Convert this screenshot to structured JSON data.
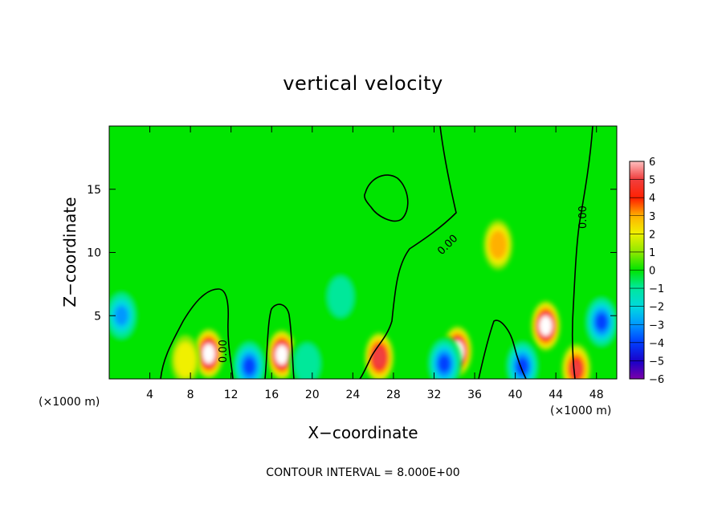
{
  "chart_data": {
    "type": "heatmap",
    "title": "vertical velocity",
    "xlabel": "X−coordinate",
    "ylabel": "Z−coordinate",
    "x_unit": "(×1000 m)",
    "y_unit": "(×1000 m)",
    "xlim": [
      0,
      50
    ],
    "ylim": [
      0,
      20
    ],
    "x_ticks": [
      4,
      8,
      12,
      16,
      20,
      24,
      28,
      32,
      36,
      40,
      44,
      48
    ],
    "y_ticks": [
      5,
      10,
      15
    ],
    "colorbar": {
      "min": -6,
      "max": 6,
      "ticks": [
        6,
        5,
        4,
        3,
        2,
        1,
        0,
        -1,
        -2,
        -3,
        -4,
        -5,
        -6
      ],
      "tick_labels": [
        "6",
        "5",
        "4",
        "3",
        "2",
        "1",
        "0",
        "−1",
        "−2",
        "−3",
        "−4",
        "−5",
        "−6"
      ]
    },
    "contour_labels": [
      "0.00",
      "0.00",
      "0.00"
    ],
    "contour_interval_text": "CONTOUR INTERVAL = 8.000E+00",
    "features": [
      {
        "x": 9.8,
        "z": 2.0,
        "w": 6
      },
      {
        "x": 17.0,
        "z": 1.9,
        "w": 6
      },
      {
        "x": 26.6,
        "z": 1.7,
        "w": 5
      },
      {
        "x": 34.3,
        "z": 2.2,
        "w": 6
      },
      {
        "x": 43.0,
        "z": 4.2,
        "w": 6
      },
      {
        "x": 38.3,
        "z": 10.6,
        "w": 3
      },
      {
        "x": 7.5,
        "z": 1.5,
        "w": 2
      },
      {
        "x": 46.0,
        "z": 0.8,
        "w": 4
      },
      {
        "x": 1.2,
        "z": 5.0,
        "w": -3
      },
      {
        "x": 13.8,
        "z": 1.0,
        "w": -4
      },
      {
        "x": 22.8,
        "z": 6.5,
        "w": -2
      },
      {
        "x": 33.0,
        "z": 1.2,
        "w": -4
      },
      {
        "x": 40.7,
        "z": 1.0,
        "w": -4
      },
      {
        "x": 48.5,
        "z": 4.5,
        "w": -4
      },
      {
        "x": 19.5,
        "z": 1.2,
        "w": -2
      }
    ],
    "colors": {
      "background_field": "#00e400",
      "contour": "#000000"
    }
  }
}
